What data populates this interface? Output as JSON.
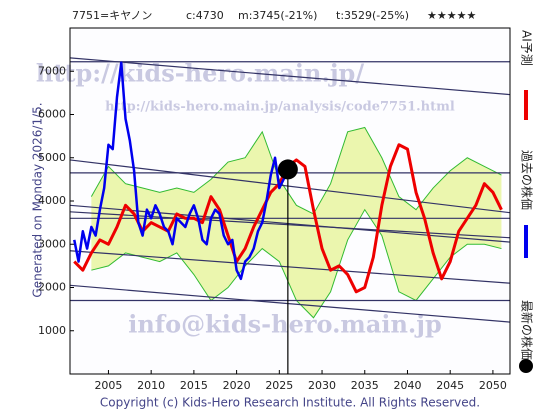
{
  "chart_data": {
    "type": "line",
    "title": "7751=キヤノン",
    "header": [
      "c:4730",
      "m:3745(-21%)",
      "t:3529(-25%)",
      "★★★★★"
    ],
    "generated": "Generated on Monday 2026/1/5.",
    "copyright": "Copyright (c) Kids-Hero Research Institute. All Rights Reserved.",
    "watermarks": [
      "http://kids-hero.main.jp/",
      "http://kids-hero.main.jp/analysis/code7751.html",
      "info@kids-hero.main.jp"
    ],
    "xlim": [
      2000.5,
      2052
    ],
    "xticks": [
      2005,
      2010,
      2015,
      2020,
      2025,
      2030,
      2035,
      2040,
      2045,
      2050
    ],
    "ylim": [
      0,
      8000
    ],
    "yticks": [
      1000,
      2000,
      3000,
      4000,
      5000,
      6000,
      7000
    ],
    "band": {
      "color": "#e8f5a0",
      "edge": "#33bb33",
      "x": [
        2003,
        2005,
        2007,
        2009,
        2011,
        2013,
        2015,
        2017,
        2019,
        2021,
        2023,
        2025,
        2027,
        2029,
        2031,
        2033,
        2035,
        2037,
        2039,
        2041,
        2043,
        2045,
        2047,
        2049,
        2051
      ],
      "upper": [
        4100,
        4800,
        4400,
        4300,
        4200,
        4300,
        4200,
        4500,
        4900,
        5000,
        5600,
        4500,
        3900,
        3700,
        4400,
        5600,
        5700,
        5000,
        4100,
        3800,
        4300,
        4700,
        5000,
        4800,
        4600
      ],
      "lower": [
        2400,
        2500,
        2800,
        2700,
        2600,
        2800,
        2300,
        1700,
        2000,
        2500,
        2900,
        2600,
        1700,
        1300,
        1900,
        3100,
        3800,
        3200,
        1900,
        1700,
        2200,
        2700,
        3000,
        3000,
        2900
      ]
    },
    "trend_lines": {
      "color": "#333366",
      "lines": [
        [
          7220,
          7220
        ],
        [
          7310,
          6460
        ],
        [
          4950,
          3730
        ],
        [
          4650,
          4650
        ],
        [
          3900,
          3050
        ],
        [
          3600,
          3600
        ],
        [
          3750,
          3150
        ],
        [
          2850,
          2100
        ],
        [
          1700,
          1700
        ],
        [
          2050,
          1200
        ]
      ]
    },
    "series": [
      {
        "name": "AI予測",
        "color": "#ee0000",
        "x": [
          2001,
          2002,
          2003,
          2004,
          2005,
          2006,
          2007,
          2008,
          2009,
          2010,
          2011,
          2012,
          2013,
          2014,
          2015,
          2016,
          2017,
          2018,
          2019,
          2020,
          2021,
          2022,
          2023,
          2024,
          2025,
          2026,
          2027,
          2028,
          2029,
          2030,
          2031,
          2032,
          2033,
          2034,
          2035,
          2036,
          2037,
          2038,
          2039,
          2040,
          2041,
          2042,
          2043,
          2044,
          2045,
          2046,
          2047,
          2048,
          2049,
          2050,
          2051
        ],
        "values": [
          2600,
          2400,
          2800,
          3100,
          3000,
          3400,
          3900,
          3700,
          3300,
          3500,
          3400,
          3300,
          3700,
          3600,
          3600,
          3500,
          4100,
          3800,
          3200,
          2600,
          2900,
          3400,
          3800,
          4200,
          4400,
          4800,
          4950,
          4800,
          3800,
          2900,
          2400,
          2500,
          2300,
          1900,
          2000,
          2700,
          3900,
          4800,
          5300,
          5200,
          4200,
          3600,
          2800,
          2200,
          2600,
          3300,
          3600,
          3900,
          4400,
          4200,
          3800
        ]
      },
      {
        "name": "過去の株価",
        "color": "#0000ee",
        "x": [
          2001,
          2001.5,
          2002,
          2002.5,
          2003,
          2003.5,
          2004,
          2004.5,
          2005,
          2005.5,
          2006,
          2006.5,
          2007,
          2007.5,
          2008,
          2008.5,
          2009,
          2009.5,
          2010,
          2010.5,
          2011,
          2011.5,
          2012,
          2012.5,
          2013,
          2013.5,
          2014,
          2014.5,
          2015,
          2015.5,
          2016,
          2016.5,
          2017,
          2017.5,
          2018,
          2018.5,
          2019,
          2019.5,
          2020,
          2020.5,
          2021,
          2021.5,
          2022,
          2022.5,
          2023,
          2023.5,
          2024,
          2024.5,
          2025,
          2025.5,
          2026
        ],
        "values": [
          3100,
          2600,
          3300,
          2900,
          3400,
          3200,
          3800,
          4300,
          5300,
          5200,
          6400,
          7200,
          5900,
          5400,
          4700,
          3500,
          3200,
          3800,
          3600,
          3900,
          3700,
          3400,
          3300,
          3000,
          3600,
          3500,
          3400,
          3700,
          3900,
          3600,
          3100,
          3000,
          3600,
          3800,
          3700,
          3200,
          3000,
          3100,
          2400,
          2200,
          2600,
          2700,
          2900,
          3300,
          3500,
          4000,
          4600,
          5000,
          4300,
          4500,
          4730
        ]
      }
    ],
    "latest": {
      "name": "最新の株価",
      "color": "#000000",
      "x": 2026,
      "value": 4730
    }
  }
}
